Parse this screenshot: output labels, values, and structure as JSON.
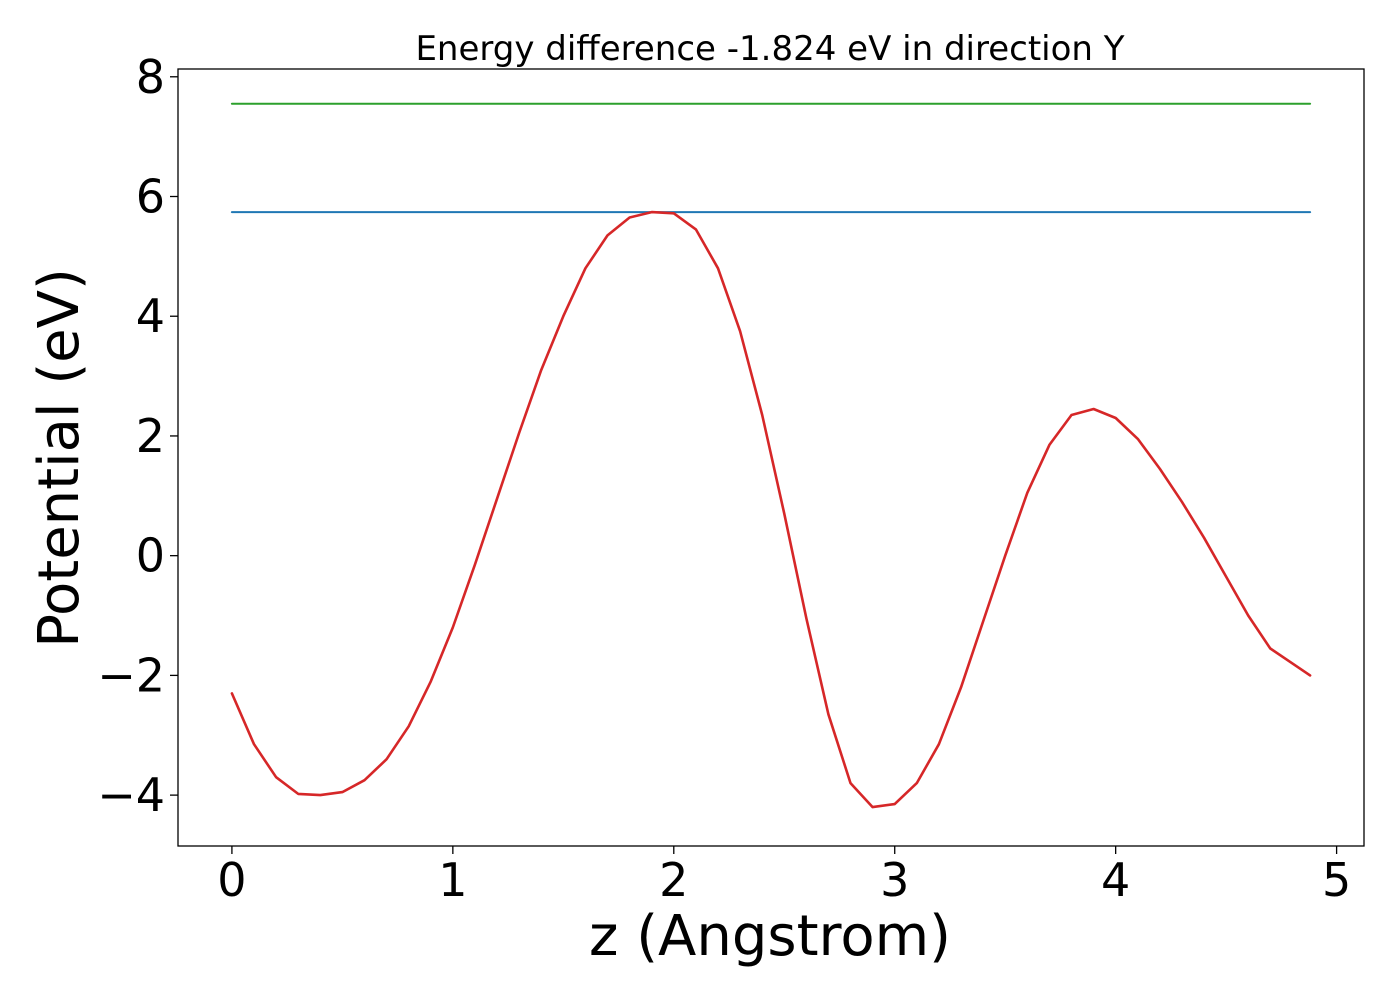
{
  "chart_data": {
    "type": "line",
    "title": "Energy difference -1.824 eV in direction Y",
    "xlabel": "z (Angstrom)",
    "ylabel": "Potential (eV)",
    "xlim": [
      -0.244,
      5.124
    ],
    "ylim": [
      -4.85,
      8.13
    ],
    "x_ticks": [
      0,
      1,
      2,
      3,
      4,
      5
    ],
    "x_tick_labels": [
      "0",
      "1",
      "2",
      "3",
      "4",
      "5"
    ],
    "y_ticks": [
      -4,
      -2,
      0,
      2,
      4,
      6,
      8
    ],
    "y_tick_labels": [
      "−4",
      "−2",
      "0",
      "2",
      "4",
      "6",
      "8"
    ],
    "grid": false,
    "series": [
      {
        "color": "#d62728",
        "kind": "curve",
        "x": [
          0,
          0.1,
          0.2,
          0.3,
          0.4,
          0.5,
          0.6,
          0.7,
          0.8,
          0.9,
          1.0,
          1.1,
          1.2,
          1.3,
          1.4,
          1.5,
          1.6,
          1.7,
          1.8,
          1.9,
          2.0,
          2.1,
          2.2,
          2.3,
          2.4,
          2.5,
          2.6,
          2.7,
          2.8,
          2.9,
          3.0,
          3.1,
          3.2,
          3.3,
          3.4,
          3.5,
          3.6,
          3.7,
          3.8,
          3.9,
          4.0,
          4.1,
          4.2,
          4.3,
          4.4,
          4.5,
          4.6,
          4.7,
          4.8,
          4.88
        ],
        "y": [
          -2.3,
          -3.15,
          -3.7,
          -3.98,
          -4.0,
          -3.95,
          -3.75,
          -3.4,
          -2.85,
          -2.1,
          -1.2,
          -0.15,
          0.95,
          2.05,
          3.1,
          4.0,
          4.8,
          5.35,
          5.65,
          5.74,
          5.72,
          5.45,
          4.8,
          3.75,
          2.35,
          0.7,
          -1.05,
          -2.65,
          -3.8,
          -4.2,
          -4.15,
          -3.8,
          -3.15,
          -2.2,
          -1.1,
          0.0,
          1.05,
          1.85,
          2.35,
          2.45,
          2.3,
          1.95,
          1.45,
          0.9,
          0.3,
          -0.35,
          -1.0,
          -1.55,
          -1.8,
          -2.0
        ]
      },
      {
        "color": "#1f77b4",
        "kind": "hline",
        "x": [
          0,
          4.88
        ],
        "y": [
          5.74,
          5.74
        ]
      },
      {
        "color": "#2ca02c",
        "kind": "hline",
        "x": [
          0,
          4.88
        ],
        "y": [
          7.55,
          7.55
        ]
      }
    ]
  }
}
